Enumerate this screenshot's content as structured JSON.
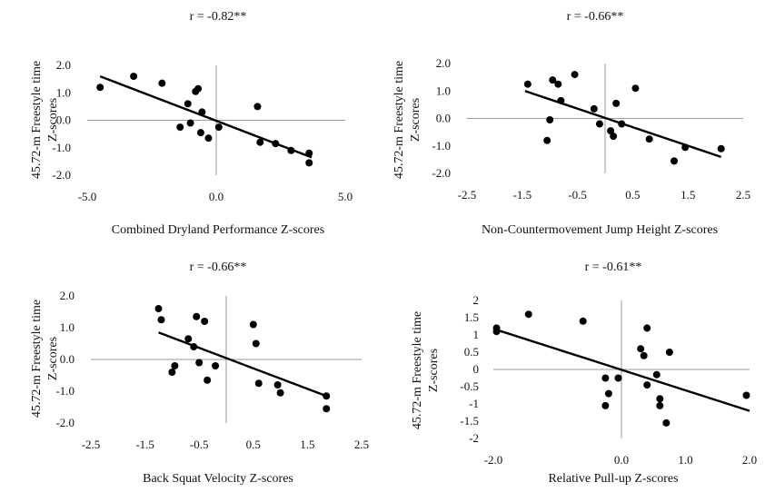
{
  "chart_data": [
    {
      "type": "scatter",
      "title": "r = -0.82**",
      "xlabel": "Combined Dryland Performance  Z-scores",
      "ylabel": [
        "45.72-m  Freestyle time",
        "Z-scores"
      ],
      "xlim": [
        -5,
        5
      ],
      "ylim": [
        -2,
        2
      ],
      "xticks": [
        "-5.0",
        "0.0",
        "5.0"
      ],
      "yticks": [
        "-2.0",
        "-1.0",
        "0.0",
        "1.0",
        "2.0"
      ],
      "points": [
        [
          -4.5,
          1.2
        ],
        [
          -3.2,
          1.6
        ],
        [
          -2.1,
          1.35
        ],
        [
          -1.4,
          -0.25
        ],
        [
          -1.1,
          0.6
        ],
        [
          -1.0,
          -0.1
        ],
        [
          -0.8,
          1.05
        ],
        [
          -0.7,
          1.15
        ],
        [
          -0.6,
          -0.45
        ],
        [
          -0.55,
          0.3
        ],
        [
          -0.3,
          -0.65
        ],
        [
          0.1,
          -0.25
        ],
        [
          1.6,
          0.5
        ],
        [
          1.7,
          -0.8
        ],
        [
          2.3,
          -0.85
        ],
        [
          2.9,
          -1.1
        ],
        [
          3.6,
          -1.2
        ],
        [
          3.6,
          -1.55
        ]
      ],
      "trendline": {
        "x": [
          -4.5,
          3.7
        ],
        "y": [
          1.6,
          -1.35
        ]
      },
      "grid": false
    },
    {
      "type": "scatter",
      "title": "r = -0.66**",
      "xlabel": "Non-Countermovement  Jump Height Z-scores",
      "ylabel": [
        "45.72-m  Freestyle time",
        "Z-scores"
      ],
      "xlim": [
        -2.5,
        2.5
      ],
      "ylim": [
        -2,
        2
      ],
      "xticks": [
        "-2.5",
        "-1.5",
        "-0.5",
        "0.5",
        "1.5",
        "2.5"
      ],
      "yticks": [
        "-2.0",
        "-1.0",
        "0.0",
        "1.0",
        "2.0"
      ],
      "points": [
        [
          -1.4,
          1.25
        ],
        [
          -1.05,
          -0.8
        ],
        [
          -1.0,
          -0.05
        ],
        [
          -0.95,
          1.4
        ],
        [
          -0.85,
          1.25
        ],
        [
          -0.8,
          0.65
        ],
        [
          -0.55,
          1.6
        ],
        [
          -0.2,
          0.35
        ],
        [
          -0.1,
          -0.2
        ],
        [
          0.1,
          -0.45
        ],
        [
          0.15,
          -0.65
        ],
        [
          0.2,
          0.55
        ],
        [
          0.3,
          -0.2
        ],
        [
          0.55,
          1.1
        ],
        [
          0.8,
          -0.75
        ],
        [
          1.25,
          -1.55
        ],
        [
          1.45,
          -1.05
        ],
        [
          2.1,
          -1.1
        ]
      ],
      "trendline": {
        "x": [
          -1.45,
          2.1
        ],
        "y": [
          1.0,
          -1.4
        ]
      },
      "grid": false
    },
    {
      "type": "scatter",
      "title": "r = -0.66**",
      "xlabel": "Back Squat Velocity Z-scores",
      "ylabel": [
        "45.72-m  Freestyle time",
        "Z-scores"
      ],
      "xlim": [
        -2.5,
        2.5
      ],
      "ylim": [
        -2,
        2
      ],
      "xticks": [
        "-2.5",
        "-1.5",
        "-0.5",
        "0.5",
        "1.5",
        "2.5"
      ],
      "yticks": [
        "-2.0",
        "-1.0",
        "0.0",
        "1.0",
        "2.0"
      ],
      "points": [
        [
          -1.25,
          1.6
        ],
        [
          -1.2,
          1.25
        ],
        [
          -1.0,
          -0.4
        ],
        [
          -0.95,
          -0.2
        ],
        [
          -0.7,
          0.65
        ],
        [
          -0.6,
          0.4
        ],
        [
          -0.55,
          1.35
        ],
        [
          -0.5,
          -0.1
        ],
        [
          -0.4,
          1.2
        ],
        [
          -0.35,
          -0.65
        ],
        [
          -0.2,
          -0.2
        ],
        [
          0.5,
          1.1
        ],
        [
          0.55,
          0.5
        ],
        [
          0.6,
          -0.75
        ],
        [
          0.95,
          -0.8
        ],
        [
          1.0,
          -1.05
        ],
        [
          1.85,
          -1.15
        ],
        [
          1.85,
          -1.55
        ]
      ],
      "trendline": {
        "x": [
          -1.25,
          1.85
        ],
        "y": [
          0.85,
          -1.15
        ]
      },
      "grid": false
    },
    {
      "type": "scatter",
      "title": "r = -0.61**",
      "xlabel": "Relative Pull-up Z-scores",
      "ylabel": [
        "45.72-m  Freestyle time",
        "Z-scores"
      ],
      "xlim": [
        -2,
        2
      ],
      "ylim": [
        -2,
        2
      ],
      "xticks": [
        "-2.0",
        "0.0",
        "1.0",
        "2.0"
      ],
      "ytick_values": [
        -2,
        -1.5,
        -1,
        -0.5,
        0,
        0.5,
        1,
        1.5,
        2
      ],
      "yticks": [
        "-2",
        "-1.5",
        "-1",
        "-0.5",
        "0",
        "0.5",
        "1",
        "1.5",
        "2"
      ],
      "points": [
        [
          -1.95,
          1.2
        ],
        [
          -1.95,
          1.1
        ],
        [
          -1.45,
          1.6
        ],
        [
          -0.6,
          1.4
        ],
        [
          -0.25,
          -0.25
        ],
        [
          -0.25,
          -1.05
        ],
        [
          -0.2,
          -0.7
        ],
        [
          -0.05,
          -0.25
        ],
        [
          0.3,
          0.6
        ],
        [
          0.35,
          0.4
        ],
        [
          0.4,
          1.2
        ],
        [
          0.4,
          -0.45
        ],
        [
          0.55,
          -0.15
        ],
        [
          0.6,
          -0.85
        ],
        [
          0.6,
          -1.05
        ],
        [
          0.7,
          -1.55
        ],
        [
          0.75,
          0.5
        ],
        [
          1.95,
          -0.75
        ]
      ],
      "trendline": {
        "x": [
          -1.95,
          2.0
        ],
        "y": [
          1.15,
          -1.2
        ]
      },
      "grid": false
    }
  ]
}
